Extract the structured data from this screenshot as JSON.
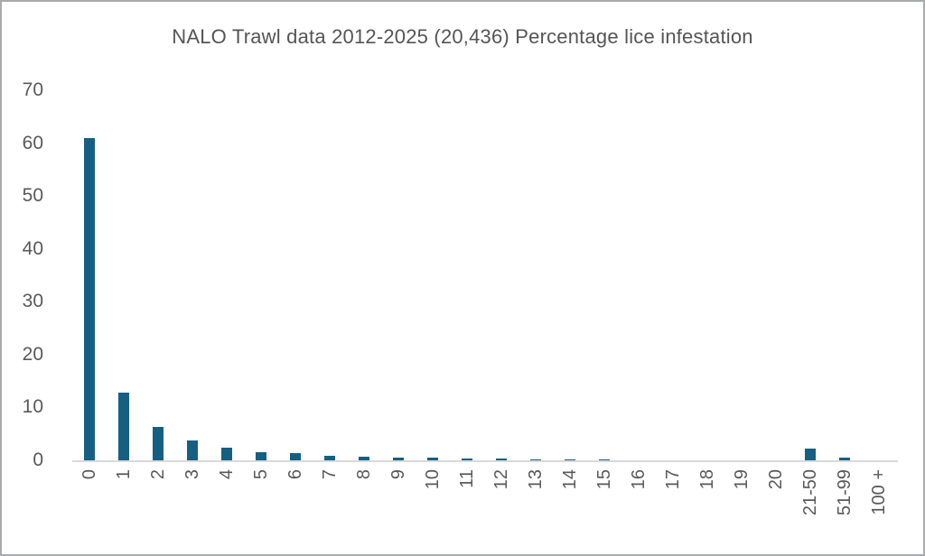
{
  "title": "NALO Trawl data 2012-2025 (20,436) Percentage lice infestation",
  "colors": {
    "bar": "#156082",
    "title_text": "#555555",
    "axis_text": "#595959",
    "axis_line": "#d9d9d9",
    "border": "#a9abac",
    "background": "#ffffff"
  },
  "chart_data": {
    "type": "bar",
    "title": "NALO Trawl data 2012-2025 (20,436) Percentage lice infestation",
    "xlabel": "",
    "ylabel": "",
    "categories": [
      "0",
      "1",
      "2",
      "3",
      "4",
      "5",
      "6",
      "7",
      "8",
      "9",
      "10",
      "11",
      "12",
      "13",
      "14",
      "15",
      "16",
      "17",
      "18",
      "19",
      "20",
      "21-50",
      "51-99",
      "100 +"
    ],
    "values": [
      61,
      12.8,
      6.4,
      3.8,
      2.4,
      1.6,
      1.4,
      0.9,
      0.7,
      0.5,
      0.45,
      0.35,
      0.3,
      0.25,
      0.15,
      0.15,
      0,
      0,
      0,
      0,
      0,
      2.2,
      0.6,
      0
    ],
    "ylim": [
      0,
      70
    ],
    "yticks": [
      0,
      10,
      20,
      30,
      40,
      50,
      60,
      70
    ],
    "grid": false,
    "legend": false,
    "x_tick_rotation_degrees": 90,
    "unit": "percent"
  }
}
